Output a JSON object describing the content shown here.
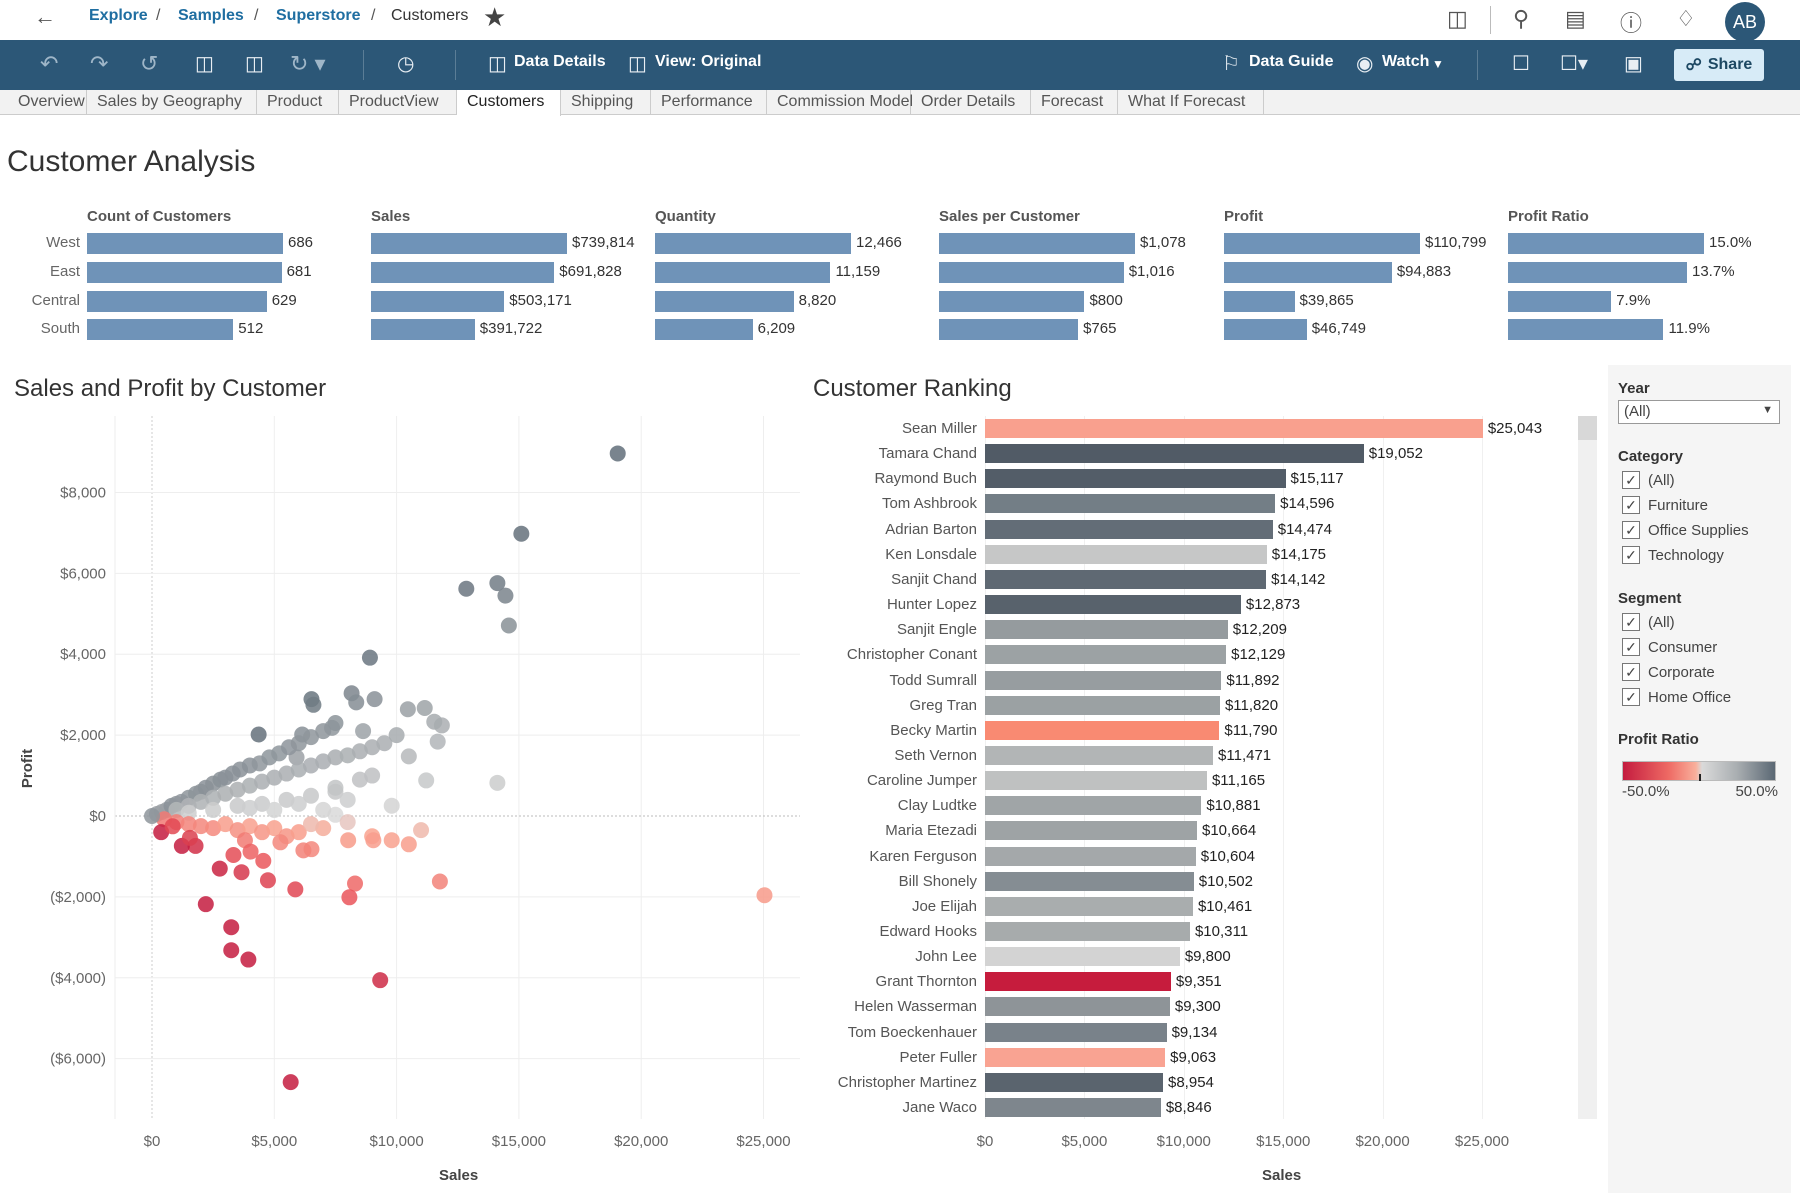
{
  "header": {
    "breadcrumb": [
      "Explore",
      "Samples",
      "Superstore"
    ],
    "current": "Customers",
    "avatar": "AB",
    "icons": [
      "back-arrow-icon",
      "star-icon",
      "datasource-icon",
      "search-icon",
      "custom-views-icon",
      "help-icon",
      "bell-icon"
    ]
  },
  "toolbar": {
    "data_details": "Data Details",
    "view": "View: Original",
    "data_guide": "Data Guide",
    "watch": "Watch",
    "share": "Share"
  },
  "tabs": [
    {
      "label": "Overview"
    },
    {
      "label": "Sales by Geography"
    },
    {
      "label": "Product"
    },
    {
      "label": "ProductView"
    },
    {
      "label": "Customers",
      "active": true
    },
    {
      "label": "Shipping"
    },
    {
      "label": "Performance"
    },
    {
      "label": "Commission Model"
    },
    {
      "label": "Order Details"
    },
    {
      "label": "Forecast"
    },
    {
      "label": "What If Forecast"
    }
  ],
  "title": "Customer Analysis",
  "colors": {
    "kpi_bar": "#6f93b8",
    "toolbar": "#2c5777",
    "link": "#1f6ea1"
  },
  "chart_data": [
    {
      "type": "bar",
      "orientation": "horizontal",
      "categories": [
        "West",
        "East",
        "Central",
        "South"
      ],
      "series": [
        {
          "name": "Count of Customers",
          "values": [
            686,
            681,
            629,
            512
          ],
          "labels": [
            "686",
            "681",
            "629",
            "512"
          ]
        },
        {
          "name": "Sales",
          "values": [
            739814,
            691828,
            503171,
            391722
          ],
          "labels": [
            "$739,814",
            "$691,828",
            "$503,171",
            "$391,722"
          ]
        },
        {
          "name": "Quantity",
          "values": [
            12466,
            11159,
            8820,
            6209
          ],
          "labels": [
            "12,466",
            "11,159",
            "8,820",
            "6,209"
          ]
        },
        {
          "name": "Sales per Customer",
          "values": [
            1078,
            1016,
            800,
            765
          ],
          "labels": [
            "$1,078",
            "$1,016",
            "$800",
            "$765"
          ]
        },
        {
          "name": "Profit",
          "values": [
            110799,
            94883,
            39865,
            46749
          ],
          "labels": [
            "$110,799",
            "$94,883",
            "$39,865",
            "$46,749"
          ]
        },
        {
          "name": "Profit Ratio",
          "values": [
            15.0,
            13.7,
            7.9,
            11.9
          ],
          "labels": [
            "15.0%",
            "13.7%",
            "7.9%",
            "11.9%"
          ]
        }
      ]
    },
    {
      "type": "scatter",
      "title": "Sales and Profit by Customer",
      "xlabel": "Sales",
      "ylabel": "Profit",
      "xlim": [
        -1500,
        26500
      ],
      "ylim": [
        -7500,
        9900
      ],
      "xticks": [
        {
          "v": 0,
          "l": "$0"
        },
        {
          "v": 5000,
          "l": "$5,000"
        },
        {
          "v": 10000,
          "l": "$10,000"
        },
        {
          "v": 15000,
          "l": "$15,000"
        },
        {
          "v": 20000,
          "l": "$20,000"
        },
        {
          "v": 25000,
          "l": "$25,000"
        }
      ],
      "yticks": [
        {
          "v": 8000,
          "l": "$8,000"
        },
        {
          "v": 6000,
          "l": "$6,000"
        },
        {
          "v": 4000,
          "l": "$4,000"
        },
        {
          "v": 2000,
          "l": "$2,000"
        },
        {
          "v": 0,
          "l": "$0"
        },
        {
          "v": -2000,
          "l": "($2,000)"
        },
        {
          "v": -4000,
          "l": "($4,000)"
        },
        {
          "v": -6000,
          "l": "($6,000)"
        }
      ],
      "color_by": "Profit Ratio",
      "grid": true,
      "points": [
        [
          19040,
          8965
        ],
        [
          15100,
          6980
        ],
        [
          12850,
          5620
        ],
        [
          14120,
          5760
        ],
        [
          14450,
          5450
        ],
        [
          14590,
          4710
        ],
        [
          8910,
          3915
        ],
        [
          6520,
          2890
        ],
        [
          6600,
          2750
        ],
        [
          8160,
          3035
        ],
        [
          8350,
          2810
        ],
        [
          9100,
          2890
        ],
        [
          10460,
          2640
        ],
        [
          11150,
          2670
        ],
        [
          11850,
          2240
        ],
        [
          10500,
          1475
        ],
        [
          11540,
          2330
        ],
        [
          11680,
          1840
        ],
        [
          14120,
          820
        ],
        [
          11210,
          880
        ],
        [
          9800,
          255
        ],
        [
          4360,
          2015
        ],
        [
          6140,
          2015
        ],
        [
          7360,
          2180
        ],
        [
          8630,
          2100
        ],
        [
          5910,
          1450
        ],
        [
          7500,
          600
        ],
        [
          7500,
          30
        ],
        [
          200,
          50
        ],
        [
          400,
          100
        ],
        [
          600,
          150
        ],
        [
          800,
          250
        ],
        [
          1000,
          300
        ],
        [
          1200,
          350
        ],
        [
          1500,
          450
        ],
        [
          1800,
          550
        ],
        [
          2000,
          600
        ],
        [
          2200,
          700
        ],
        [
          2500,
          800
        ],
        [
          2800,
          900
        ],
        [
          3000,
          950
        ],
        [
          3300,
          1050
        ],
        [
          3600,
          1150
        ],
        [
          4000,
          1250
        ],
        [
          4400,
          1300
        ],
        [
          4800,
          1450
        ],
        [
          5200,
          1550
        ],
        [
          5600,
          1700
        ],
        [
          6000,
          1800
        ],
        [
          6500,
          1950
        ],
        [
          7000,
          2100
        ],
        [
          7500,
          2300
        ],
        [
          1000,
          150
        ],
        [
          1500,
          250
        ],
        [
          2000,
          350
        ],
        [
          2500,
          450
        ],
        [
          3000,
          550
        ],
        [
          3500,
          650
        ],
        [
          4000,
          750
        ],
        [
          4500,
          850
        ],
        [
          5000,
          950
        ],
        [
          5500,
          1050
        ],
        [
          6000,
          1150
        ],
        [
          6500,
          1250
        ],
        [
          7000,
          1350
        ],
        [
          7500,
          1450
        ],
        [
          8000,
          1500
        ],
        [
          8500,
          1600
        ],
        [
          9000,
          1700
        ],
        [
          9500,
          1800
        ],
        [
          10000,
          2000
        ],
        [
          1500,
          80
        ],
        [
          2500,
          150
        ],
        [
          3500,
          250
        ],
        [
          4500,
          300
        ],
        [
          5500,
          400
        ],
        [
          6500,
          500
        ],
        [
          7500,
          700
        ],
        [
          8500,
          900
        ],
        [
          9000,
          1000
        ],
        [
          6000,
          300
        ],
        [
          4000,
          200
        ],
        [
          5000,
          150
        ],
        [
          7000,
          150
        ],
        [
          8000,
          400
        ],
        [
          500,
          -80
        ],
        [
          1000,
          -150
        ],
        [
          1500,
          -200
        ],
        [
          2000,
          -250
        ],
        [
          2500,
          -300
        ],
        [
          3000,
          -200
        ],
        [
          3500,
          -350
        ],
        [
          4000,
          -250
        ],
        [
          4500,
          -400
        ],
        [
          5000,
          -300
        ],
        [
          5500,
          -500
        ],
        [
          6000,
          -400
        ],
        [
          7000,
          -300
        ],
        [
          6500,
          -200
        ],
        [
          8000,
          -150
        ],
        [
          9000,
          -500
        ],
        [
          9800,
          -600
        ],
        [
          10500,
          -700
        ],
        [
          11000,
          -350
        ],
        [
          3800,
          -600
        ],
        [
          25040,
          -1960
        ],
        [
          11770,
          -1620
        ],
        [
          9050,
          -600
        ],
        [
          8020,
          -600
        ],
        [
          8300,
          -1670
        ],
        [
          8070,
          -2010
        ],
        [
          9330,
          -4060
        ],
        [
          5860,
          -1815
        ],
        [
          4740,
          -1590
        ],
        [
          5670,
          -6580
        ],
        [
          3940,
          -3550
        ],
        [
          3240,
          -2750
        ],
        [
          3240,
          -3320
        ],
        [
          2200,
          -2180
        ],
        [
          6520,
          -820
        ],
        [
          6190,
          -850
        ],
        [
          5250,
          -650
        ],
        [
          4550,
          -1110
        ],
        [
          4030,
          -880
        ],
        [
          3660,
          -1390
        ],
        [
          3330,
          -965
        ],
        [
          2770,
          -1300
        ],
        [
          1780,
          -740
        ],
        [
          1220,
          -740
        ],
        [
          1550,
          -540
        ],
        [
          375,
          -400
        ],
        [
          845,
          -255
        ],
        [
          0,
          0
        ]
      ]
    },
    {
      "type": "bar",
      "orientation": "horizontal",
      "title": "Customer Ranking",
      "xlabel": "Sales",
      "xlim": [
        0,
        25000
      ],
      "xticks": [
        {
          "v": 0,
          "l": "$0"
        },
        {
          "v": 5000,
          "l": "$5,000"
        },
        {
          "v": 10000,
          "l": "$10,000"
        },
        {
          "v": 15000,
          "l": "$15,000"
        },
        {
          "v": 20000,
          "l": "$20,000"
        },
        {
          "v": 25000,
          "l": "$25,000"
        }
      ],
      "rows": [
        {
          "name": "Sean Miller",
          "value": 25043,
          "label": "$25,043",
          "color": "#f9a08e"
        },
        {
          "name": "Tamara Chand",
          "value": 19052,
          "label": "$19,052",
          "color": "#515b66"
        },
        {
          "name": "Raymond Buch",
          "value": 15117,
          "label": "$15,117",
          "color": "#535d68"
        },
        {
          "name": "Tom Ashbrook",
          "value": 14596,
          "label": "$14,596",
          "color": "#737e86"
        },
        {
          "name": "Adrian Barton",
          "value": 14474,
          "label": "$14,474",
          "color": "#636d77"
        },
        {
          "name": "Ken Lonsdale",
          "value": 14175,
          "label": "$14,175",
          "color": "#c6c7c7"
        },
        {
          "name": "Sanjit Chand",
          "value": 14142,
          "label": "$14,142",
          "color": "#5f6973"
        },
        {
          "name": "Hunter Lopez",
          "value": 12873,
          "label": "$12,873",
          "color": "#58626c"
        },
        {
          "name": "Sanjit Engle",
          "value": 12209,
          "label": "$12,209",
          "color": "#959b9e"
        },
        {
          "name": "Christopher Conant",
          "value": 12129,
          "label": "$12,129",
          "color": "#9ca2a4"
        },
        {
          "name": "Todd Sumrall",
          "value": 11892,
          "label": "$11,892",
          "color": "#979da0"
        },
        {
          "name": "Greg Tran",
          "value": 11820,
          "label": "$11,820",
          "color": "#9ba1a3"
        },
        {
          "name": "Becky Martin",
          "value": 11790,
          "label": "$11,790",
          "color": "#f98a72"
        },
        {
          "name": "Seth Vernon",
          "value": 11471,
          "label": "$11,471",
          "color": "#b2b5b6"
        },
        {
          "name": "Caroline Jumper",
          "value": 11165,
          "label": "$11,165",
          "color": "#bfc1c1"
        },
        {
          "name": "Clay Ludtke",
          "value": 10881,
          "label": "$10,881",
          "color": "#a0a5a7"
        },
        {
          "name": "Maria Etezadi",
          "value": 10664,
          "label": "$10,664",
          "color": "#9ea3a5"
        },
        {
          "name": "Karen Ferguson",
          "value": 10604,
          "label": "$10,604",
          "color": "#a4a8aa"
        },
        {
          "name": "Bill Shonely",
          "value": 10502,
          "label": "$10,502",
          "color": "#858d93"
        },
        {
          "name": "Joe Elijah",
          "value": 10461,
          "label": "$10,461",
          "color": "#a9adae"
        },
        {
          "name": "Edward Hooks",
          "value": 10311,
          "label": "$10,311",
          "color": "#a7abac"
        },
        {
          "name": "John Lee",
          "value": 9800,
          "label": "$9,800",
          "color": "#d3d3d3"
        },
        {
          "name": "Grant Thornton",
          "value": 9351,
          "label": "$9,351",
          "color": "#c61c3d"
        },
        {
          "name": "Helen Wasserman",
          "value": 9300,
          "label": "$9,300",
          "color": "#8e9498"
        },
        {
          "name": "Tom Boeckenhauer",
          "value": 9134,
          "label": "$9,134",
          "color": "#79828a"
        },
        {
          "name": "Peter Fuller",
          "value": 9063,
          "label": "$9,063",
          "color": "#f9a392"
        },
        {
          "name": "Christopher Martinez",
          "value": 8954,
          "label": "$8,954",
          "color": "#5a646e"
        },
        {
          "name": "Jane Waco",
          "value": 8846,
          "label": "$8,846",
          "color": "#7e868d"
        }
      ]
    }
  ],
  "filters": {
    "year_label": "Year",
    "year_value": "(All)",
    "category_label": "Category",
    "category": [
      {
        "label": "(All)",
        "checked": true
      },
      {
        "label": "Furniture",
        "checked": true
      },
      {
        "label": "Office Supplies",
        "checked": true
      },
      {
        "label": "Technology",
        "checked": true
      }
    ],
    "segment_label": "Segment",
    "segment": [
      {
        "label": "(All)",
        "checked": true
      },
      {
        "label": "Consumer",
        "checked": true
      },
      {
        "label": "Corporate",
        "checked": true
      },
      {
        "label": "Home Office",
        "checked": true
      }
    ],
    "legend_label": "Profit Ratio",
    "legend_min": "-50.0%",
    "legend_max": "50.0%"
  }
}
